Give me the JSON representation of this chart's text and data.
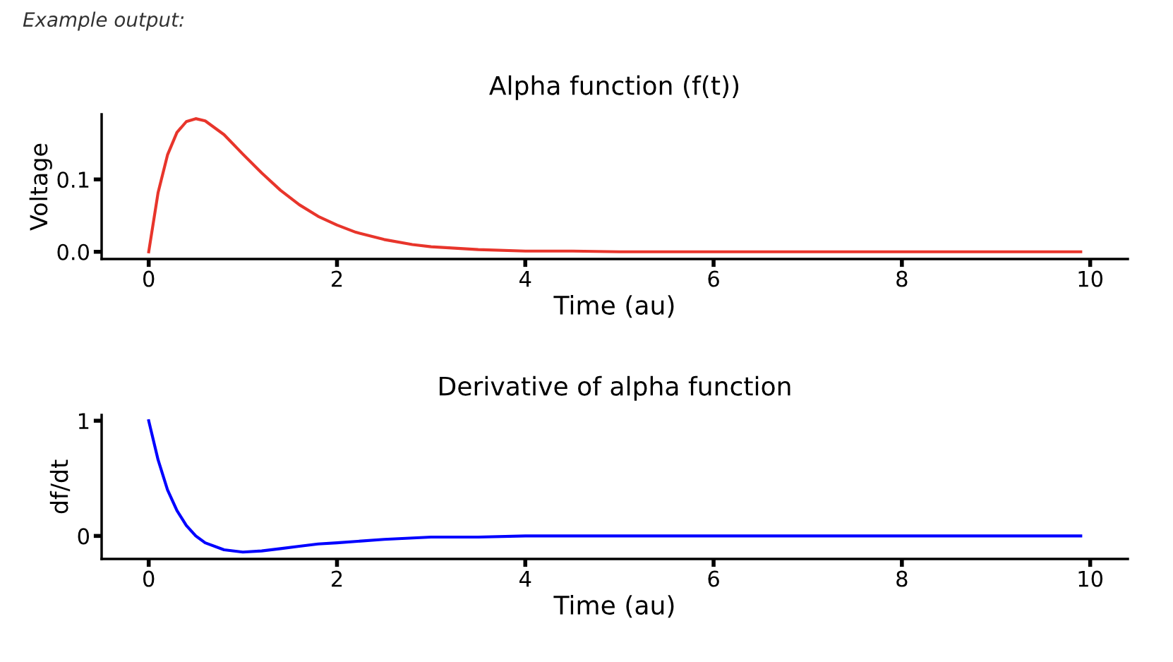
{
  "chart_data": [
    {
      "type": "line",
      "title": "Alpha function (f(t))",
      "xlabel": "Time (au)",
      "ylabel": "Voltage",
      "annotations": [
        "Example output:"
      ],
      "xlim": [
        -0.5,
        10.4
      ],
      "ylim": [
        -0.01,
        0.19
      ],
      "xticks": [
        0,
        2,
        4,
        6,
        8,
        10
      ],
      "yticks": [
        {
          "value": 0,
          "label": "0.0"
        },
        0.1
      ],
      "grid": false,
      "legend": false,
      "series": [
        {
          "color": "#e8352b",
          "x": [
            0,
            0.1,
            0.2,
            0.3,
            0.4,
            0.5,
            0.6,
            0.8,
            1.0,
            1.2,
            1.4,
            1.6,
            1.8,
            2.0,
            2.2,
            2.5,
            2.8,
            3.0,
            3.5,
            4.0,
            4.5,
            5.0,
            6.0,
            7.0,
            8.0,
            9.0,
            9.9
          ],
          "values": [
            0,
            0.082,
            0.134,
            0.165,
            0.18,
            0.184,
            0.181,
            0.162,
            0.135,
            0.109,
            0.085,
            0.065,
            0.049,
            0.037,
            0.027,
            0.017,
            0.01,
            0.007,
            0.003,
            0.001,
            0.001,
            0,
            0,
            0,
            0,
            0,
            0
          ]
        }
      ]
    },
    {
      "type": "line",
      "title": "Derivative of alpha function",
      "xlabel": "Time (au)",
      "ylabel": "df/dt",
      "xlim": [
        -0.5,
        10.4
      ],
      "ylim": [
        -0.2,
        1.05
      ],
      "xticks": [
        0,
        2,
        4,
        6,
        8,
        10
      ],
      "yticks": [
        0,
        1
      ],
      "grid": false,
      "legend": false,
      "series": [
        {
          "color": "#0000ff",
          "x": [
            0,
            0.1,
            0.2,
            0.3,
            0.4,
            0.5,
            0.6,
            0.8,
            1.0,
            1.2,
            1.4,
            1.6,
            1.8,
            2.0,
            2.5,
            3.0,
            3.5,
            4.0,
            5.0,
            6.0,
            7.0,
            8.0,
            9.0,
            9.9
          ],
          "values": [
            1,
            0.66,
            0.4,
            0.22,
            0.09,
            0,
            -0.06,
            -0.12,
            -0.14,
            -0.13,
            -0.11,
            -0.09,
            -0.07,
            -0.06,
            -0.03,
            -0.01,
            -0.01,
            0,
            0,
            0,
            0,
            0,
            0,
            0
          ]
        }
      ]
    }
  ]
}
